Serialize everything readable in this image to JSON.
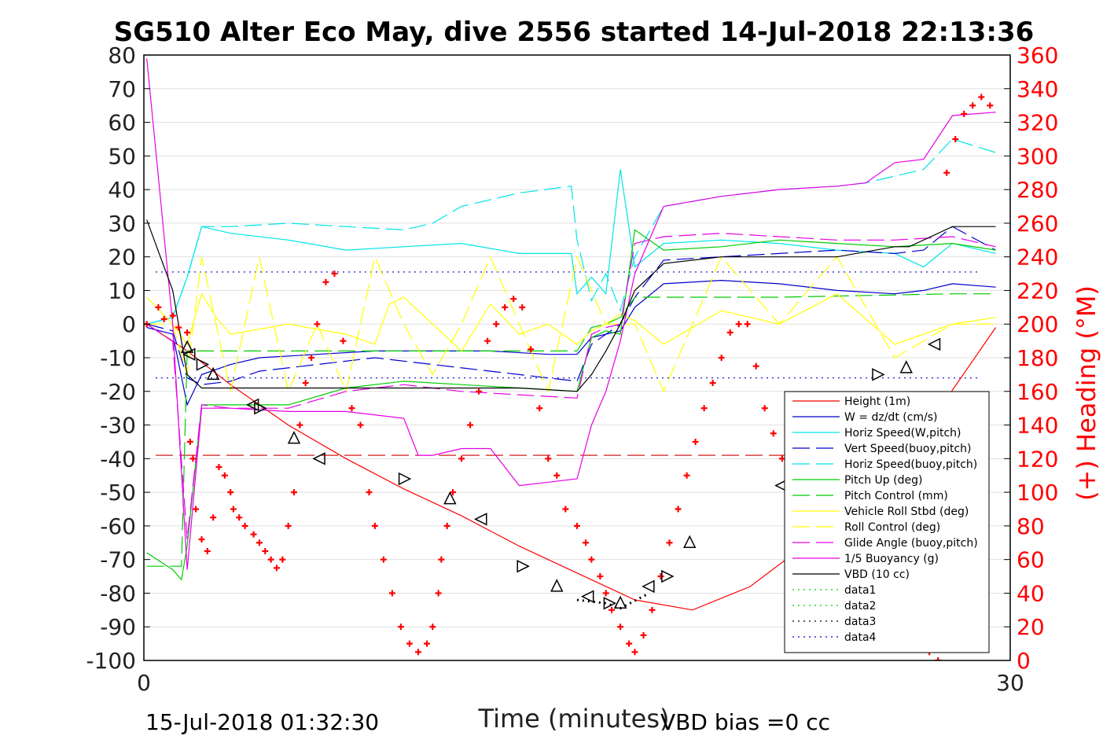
{
  "chart_data": {
    "type": "line",
    "title": "SG510 Alter Eco May, dive 2556 started 14-Jul-2018 22:13:36",
    "xlabel": "Time (minutes)",
    "ylabel_right": "(+) Heading (°M)",
    "xlim": [
      0,
      30
    ],
    "ylim": [
      -100,
      80
    ],
    "ylim_right": [
      0,
      360
    ],
    "x_ticks": [
      "0",
      "30"
    ],
    "y_ticks": [
      "80",
      "70",
      "60",
      "50",
      "40",
      "30",
      "20",
      "10",
      "0",
      "-10",
      "-20",
      "-30",
      "-40",
      "-50",
      "-60",
      "-70",
      "-80",
      "-90",
      "-100"
    ],
    "y_ticks_right": [
      "360",
      "340",
      "320",
      "300",
      "280",
      "260",
      "240",
      "220",
      "200",
      "180",
      "160",
      "140",
      "120",
      "100",
      "80",
      "60",
      "40",
      "20",
      "0"
    ],
    "grid": "horizontal",
    "legend_position": "lower-right",
    "footer_left": "15-Jul-2018 01:32:30",
    "footer_right": "VBD bias =0 cc",
    "series": [
      {
        "name": "Height (1m)",
        "color": "#ff0000",
        "style": "solid",
        "x": [
          0.1,
          1.5,
          3,
          5,
          7,
          9,
          11,
          13,
          15,
          17,
          19,
          21,
          23,
          25,
          27,
          29.5
        ],
        "y": [
          0,
          -8,
          -18,
          -30,
          -40,
          -49,
          -57,
          -66,
          -74,
          -82,
          -85,
          -78,
          -65,
          -50,
          -32,
          -1
        ]
      },
      {
        "name": "W = dz/dt (cm/s)",
        "color": "#0000cc",
        "style": "solid",
        "x": [
          0.1,
          1,
          1.5,
          2,
          3,
          4,
          6,
          8,
          10,
          12,
          14,
          15,
          15.5,
          16,
          16.5,
          17,
          18,
          20,
          22,
          24,
          26,
          27,
          28,
          29.5
        ],
        "y": [
          -1,
          -3,
          -24,
          -15,
          -12,
          -10,
          -9,
          -8,
          -8,
          -8,
          -9,
          -9,
          -4,
          -3,
          -2,
          5,
          12,
          13,
          12,
          10,
          9,
          10,
          12,
          11
        ]
      },
      {
        "name": "Horiz Speed(W,pitch)",
        "color": "#00e5e5",
        "style": "solid",
        "x": [
          0.1,
          1,
          1.5,
          2,
          3,
          5,
          7,
          9,
          11,
          13,
          14.8,
          15,
          15.5,
          16,
          16.5,
          17,
          18,
          20,
          22,
          24,
          26,
          27,
          28,
          29.5
        ],
        "y": [
          0,
          2,
          14,
          29,
          27,
          25,
          22,
          23,
          24,
          21,
          21,
          9,
          14,
          9,
          46,
          17,
          24,
          25,
          24,
          22,
          21,
          17,
          24,
          21
        ]
      },
      {
        "name": "Vert Speed(buoy,pitch)",
        "color": "#0000cc",
        "style": "dashed",
        "x": [
          0.1,
          1,
          1.5,
          2,
          3,
          4,
          6,
          8,
          10,
          12,
          14,
          15,
          15.5,
          16,
          16.5,
          17,
          18,
          20,
          22,
          24,
          26,
          27,
          28,
          29.5
        ],
        "y": [
          0,
          -2,
          -16,
          -18,
          -17,
          -14,
          -12,
          -10,
          -12,
          -14,
          -16,
          -17,
          -6,
          -3,
          0,
          8,
          19,
          20,
          21,
          22,
          21,
          22,
          29,
          22
        ]
      },
      {
        "name": "Horiz Speed(buoy,pitch)",
        "color": "#00e5e5",
        "style": "dashed",
        "x": [
          0.1,
          1,
          1.5,
          2,
          3,
          5,
          7,
          9,
          10,
          11,
          13,
          14.8,
          15,
          15.5,
          16,
          16.5,
          17,
          18,
          20,
          22,
          24,
          25,
          26,
          27,
          28,
          29.5
        ],
        "y": [
          0,
          2,
          14,
          29,
          29,
          30,
          29,
          28,
          30,
          35,
          39,
          41,
          25,
          7,
          15,
          4,
          20,
          35,
          38,
          40,
          41,
          42,
          44,
          46,
          55,
          51
        ]
      },
      {
        "name": "Pitch Up (deg)",
        "color": "#00cc00",
        "style": "solid",
        "x": [
          0.1,
          1,
          1.3,
          1.5,
          2,
          3,
          5,
          7,
          9,
          11,
          13,
          15,
          15.5,
          16,
          16.5,
          17,
          18,
          20,
          22,
          24,
          26,
          28,
          29.5
        ],
        "y": [
          -68,
          -73,
          -76,
          -66,
          -24,
          -24,
          -24,
          -19,
          -17,
          -18,
          -19,
          -20,
          -4,
          -2,
          -3,
          28,
          22,
          23,
          25,
          24,
          23,
          24,
          22
        ]
      },
      {
        "name": "Pitch Control (mm)",
        "color": "#00cc00",
        "style": "dashed",
        "x": [
          0.1,
          1.3,
          1.5,
          2,
          3,
          8,
          15,
          15.5,
          16,
          16.5,
          17,
          18,
          22,
          28,
          29.5
        ],
        "y": [
          -72,
          -72,
          -8,
          -8,
          -8,
          -8,
          -8,
          -1,
          0,
          2,
          8,
          8,
          8,
          9,
          9
        ]
      },
      {
        "name": "Vehicle Roll Stbd (deg)",
        "color": "#ffff00",
        "style": "solid",
        "x": [
          0.1,
          1,
          1.5,
          2,
          2.5,
          3,
          5,
          7,
          8,
          8.5,
          9,
          10,
          11,
          12,
          13,
          14,
          15,
          15.5,
          16,
          16.5,
          17,
          18,
          20,
          22,
          24,
          26,
          28,
          29.5
        ],
        "y": [
          8,
          0,
          -6,
          9,
          2,
          -3,
          0,
          -3,
          -6,
          6,
          8,
          0,
          -8,
          6,
          -3,
          0,
          -6,
          -2,
          0,
          3,
          1,
          -6,
          4,
          0,
          9,
          -6,
          0,
          2
        ]
      },
      {
        "name": "Roll Control (deg)",
        "color": "#ffff00",
        "style": "dashed",
        "x": [
          0.1,
          1,
          1.5,
          2,
          2.5,
          3,
          4,
          5,
          6,
          7,
          8,
          9,
          10,
          11,
          12,
          13,
          14,
          15,
          16,
          17,
          18,
          20,
          22,
          24,
          26,
          28,
          29.5
        ],
        "y": [
          0,
          0,
          -15,
          20,
          0,
          -20,
          20,
          -20,
          0,
          -20,
          20,
          0,
          -15,
          0,
          20,
          0,
          -20,
          20,
          0,
          0,
          -20,
          20,
          0,
          20,
          -10,
          0,
          0
        ]
      },
      {
        "name": "Glide Angle (buoy,pitch)",
        "color": "#e500e5",
        "style": "dashed",
        "x": [
          0.1,
          1,
          1.5,
          2,
          3,
          5,
          7,
          9,
          11,
          13,
          15,
          15.5,
          16,
          16.5,
          17,
          18,
          20,
          22,
          24,
          26,
          28,
          29.5
        ],
        "y": [
          0,
          -5,
          -64,
          -24,
          -25,
          -25,
          -20,
          -18,
          -20,
          -21,
          -22,
          -3,
          -1,
          0,
          24,
          26,
          27,
          26,
          25,
          25,
          26,
          23
        ]
      },
      {
        "name": "1/5 Buoyancy (g)",
        "color": "#e500e5",
        "style": "solid",
        "x": [
          0.1,
          1,
          1.5,
          2,
          3,
          5,
          7,
          9,
          9.5,
          10,
          11,
          12,
          13,
          14,
          15,
          15.5,
          16,
          16.5,
          17,
          18,
          20,
          22,
          24,
          25,
          26,
          27,
          28,
          29.5
        ],
        "y": [
          79,
          0,
          -73,
          -25,
          -25,
          -26,
          -26,
          -28,
          -39,
          -39,
          -37,
          -37,
          -48,
          -47,
          -46,
          -30,
          -20,
          -5,
          15,
          35,
          38,
          40,
          41,
          42,
          48,
          49,
          62,
          63
        ]
      },
      {
        "name": "VBD (10 cc)",
        "color": "#000000",
        "style": "solid",
        "x": [
          0.1,
          1,
          1.5,
          2,
          3,
          5,
          7,
          9,
          11,
          13,
          15,
          15.5,
          16,
          16.5,
          17,
          18,
          20,
          22,
          24,
          26,
          26.5,
          28,
          29.5
        ],
        "y": [
          31,
          10,
          -15,
          -19,
          -19,
          -19,
          -19,
          -19,
          -19,
          -19,
          -20,
          -15,
          -8,
          0,
          10,
          18,
          20,
          20,
          20,
          23,
          23,
          29,
          29
        ]
      },
      {
        "name": "data1",
        "color": "#00cc00",
        "style": "dotted",
        "x": [],
        "y": []
      },
      {
        "name": "data2",
        "color": "#00cc00",
        "style": "dotted",
        "x": [],
        "y": []
      },
      {
        "name": "data3",
        "color": "#000000",
        "style": "dotted",
        "x": [
          15,
          16,
          16.5,
          17.5
        ],
        "y": [
          -82,
          -83,
          -84.5,
          -80
        ]
      },
      {
        "name": "data4",
        "color": "#0000cc",
        "style": "dotted",
        "x": [],
        "y": []
      }
    ],
    "reference_lines": [
      {
        "color": "#0000cc",
        "style": "dotted",
        "y": 15.5
      },
      {
        "color": "#0000cc",
        "style": "dotted",
        "y": -16
      },
      {
        "color": "#cc0000",
        "style": "dashed",
        "y": -39
      }
    ],
    "heading_points": {
      "x": [
        0.1,
        0.5,
        0.7,
        1,
        1.2,
        1.5,
        1.6,
        1.7,
        1.8,
        2.0,
        2.2,
        2.4,
        2.6,
        2.8,
        3.0,
        3.1,
        3.3,
        3.5,
        3.8,
        4.0,
        4.2,
        4.4,
        4.6,
        4.8,
        5.0,
        5.2,
        5.4,
        5.6,
        5.8,
        6.0,
        6.3,
        6.6,
        6.9,
        7.2,
        7.5,
        7.8,
        8.0,
        8.3,
        8.6,
        8.9,
        9.2,
        9.5,
        9.8,
        10.0,
        10.2,
        10.3,
        10.5,
        10.7,
        11.0,
        11.3,
        11.6,
        11.9,
        12.2,
        12.5,
        12.8,
        13.1,
        13.4,
        13.7,
        14.0,
        14.3,
        14.6,
        15.0,
        15.3,
        15.5,
        15.8,
        16.0,
        16.2,
        16.5,
        16.8,
        17.0,
        17.3,
        17.6,
        17.9,
        18.2,
        18.5,
        18.8,
        19.1,
        19.4,
        19.7,
        20.0,
        20.3,
        20.6,
        20.9,
        21.2,
        21.5,
        21.8,
        22.1,
        22.4,
        22.7,
        23.0,
        23.3,
        23.6,
        23.9,
        24.2,
        24.5,
        24.8,
        25.1,
        25.4,
        25.7,
        26.0,
        26.3,
        26.6,
        26.9,
        27.2,
        27.5,
        27.8,
        28.1,
        28.4,
        28.7,
        29.0,
        29.3
      ],
      "y": [
        200,
        210,
        203,
        205,
        198,
        195,
        130,
        120,
        90,
        72,
        65,
        85,
        115,
        110,
        100,
        90,
        85,
        80,
        75,
        70,
        65,
        60,
        55,
        60,
        80,
        100,
        140,
        165,
        180,
        200,
        225,
        230,
        190,
        150,
        140,
        100,
        80,
        60,
        40,
        20,
        10,
        5,
        10,
        20,
        40,
        60,
        80,
        100,
        120,
        140,
        160,
        190,
        200,
        210,
        215,
        210,
        185,
        150,
        120,
        110,
        90,
        80,
        70,
        60,
        50,
        40,
        30,
        20,
        10,
        5,
        15,
        30,
        50,
        70,
        90,
        110,
        130,
        150,
        165,
        180,
        195,
        200,
        200,
        175,
        150,
        135,
        120,
        110,
        100,
        90,
        85,
        80,
        75,
        70,
        60,
        50,
        40,
        35,
        30,
        25,
        20,
        15,
        10,
        5,
        0,
        290,
        310,
        325,
        330,
        335,
        330
      ]
    },
    "markers": {
      "x": [
        1.5,
        1.6,
        2,
        2.4,
        3.8,
        4,
        5.2,
        6.1,
        9,
        10.6,
        11.7,
        13.1,
        14.3,
        15.4,
        16.1,
        16.5,
        17.5,
        18.1,
        18.9,
        22.1,
        25.4,
        26.4,
        27.4
      ],
      "y": [
        -7,
        -9,
        -12,
        -15,
        -24,
        -25,
        -34,
        -40,
        -46,
        -52,
        -58,
        -72,
        -78,
        -81,
        -83,
        -83,
        -78,
        -75,
        -65,
        -48,
        -15,
        -13,
        -6
      ]
    }
  }
}
